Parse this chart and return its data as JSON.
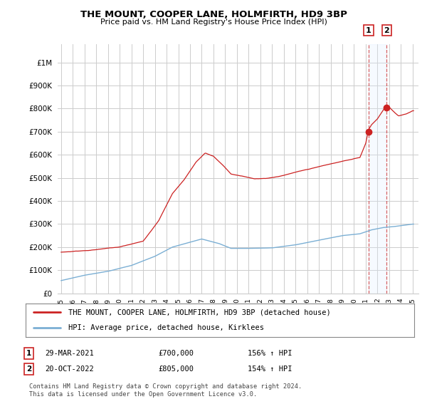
{
  "title": "THE MOUNT, COOPER LANE, HOLMFIRTH, HD9 3BP",
  "subtitle": "Price paid vs. HM Land Registry's House Price Index (HPI)",
  "ytick_labels": [
    "£0",
    "£100K",
    "£200K",
    "£300K",
    "£400K",
    "£500K",
    "£600K",
    "£700K",
    "£800K",
    "£900K",
    "£1M"
  ],
  "yticks": [
    0,
    100000,
    200000,
    300000,
    400000,
    500000,
    600000,
    700000,
    800000,
    900000,
    1000000
  ],
  "ylim": [
    0,
    1080000
  ],
  "legend_line1": "THE MOUNT, COOPER LANE, HOLMFIRTH, HD9 3BP (detached house)",
  "legend_line2": "HPI: Average price, detached house, Kirklees",
  "footer1": "Contains HM Land Registry data © Crown copyright and database right 2024.",
  "footer2": "This data is licensed under the Open Government Licence v3.0.",
  "transaction1_label": "1",
  "transaction1_date": "29-MAR-2021",
  "transaction1_price": "£700,000",
  "transaction1_hpi": "156% ↑ HPI",
  "transaction2_label": "2",
  "transaction2_date": "20-OCT-2022",
  "transaction2_price": "£805,000",
  "transaction2_hpi": "154% ↑ HPI",
  "hpi_color": "#7bafd4",
  "price_color": "#cc2222",
  "shade_color": "#ddeeff",
  "background_color": "#ffffff",
  "grid_color": "#cccccc",
  "sale1_x": 2021.25,
  "sale1_y": 700000,
  "sale2_x": 2022.79,
  "sale2_y": 805000,
  "xmin": 1994.7,
  "xmax": 2025.5
}
